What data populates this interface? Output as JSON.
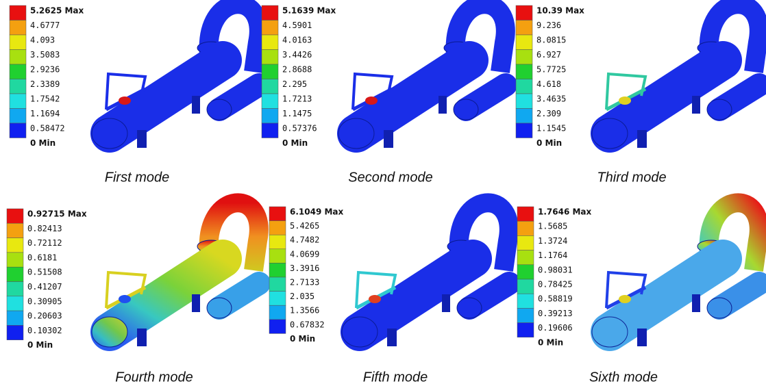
{
  "panels": [
    {
      "legend": [
        "5.2625 Max",
        "4.6777",
        "4.093",
        "3.5083",
        "2.9236",
        "2.3389",
        "1.7542",
        "1.1694",
        "0.58472",
        "0 Min"
      ],
      "caption": "First mode"
    },
    {
      "legend": [
        "5.1639 Max",
        "4.5901",
        "4.0163",
        "3.4426",
        "2.8688",
        "2.295",
        "1.7213",
        "1.1475",
        "0.57376",
        "0 Min"
      ],
      "caption": "Second mode"
    },
    {
      "legend": [
        "10.39 Max",
        "9.236",
        "8.0815",
        "6.927",
        "5.7725",
        "4.618",
        "3.4635",
        "2.309",
        "1.1545",
        "0 Min"
      ],
      "caption": "Third mode"
    },
    {
      "legend": [
        "0.92715 Max",
        "0.82413",
        "0.72112",
        "0.6181",
        "0.51508",
        "0.41207",
        "0.30905",
        "0.20603",
        "0.10302",
        "0 Min"
      ],
      "caption": "Fourth mode"
    },
    {
      "legend": [
        "6.1049 Max",
        "5.4265",
        "4.7482",
        "4.0699",
        "3.3916",
        "2.7133",
        "2.035",
        "1.3566",
        "0.67832",
        "0 Min"
      ],
      "caption": "Fifth mode"
    },
    {
      "legend": [
        "1.7646 Max",
        "1.5685",
        "1.3724",
        "1.1764",
        "0.98031",
        "0.78425",
        "0.58819",
        "0.39213",
        "0.19606",
        "0 Min"
      ],
      "caption": "Sixth mode"
    }
  ]
}
